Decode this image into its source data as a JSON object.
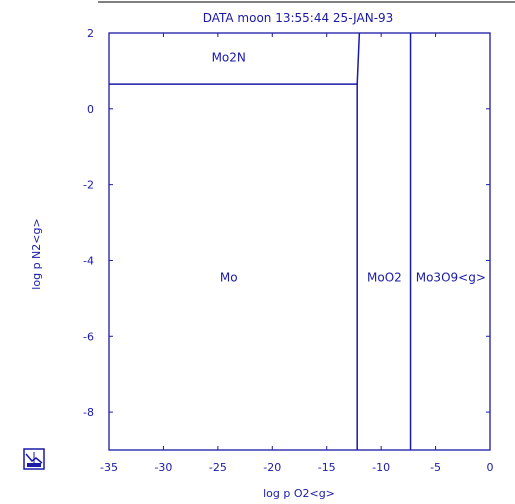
{
  "chart_data": {
    "type": "phase-diagram",
    "title": "DATA moon  13:55:44  25-JAN-93",
    "xlabel": "log p O2<g>",
    "ylabel": "log p N2<g>",
    "xlim": [
      -35,
      0
    ],
    "ylim": [
      -9,
      2
    ],
    "x_ticks": [
      -35,
      -30,
      -25,
      -20,
      -15,
      -10,
      -5,
      0
    ],
    "x_tick_labels": [
      "-35",
      "-30",
      "-25",
      "-20",
      "-15",
      "-10",
      "-5",
      "0"
    ],
    "y_ticks": [
      2,
      0,
      -2,
      -4,
      -6,
      -8
    ],
    "y_tick_labels": [
      "2",
      "0",
      "-2",
      "-4",
      "-6",
      "-8"
    ],
    "grid": false,
    "color": "#1a1aa8",
    "boundaries": [
      {
        "between": [
          "Mo",
          "Mo2N"
        ],
        "points": [
          [
            -35,
            0.65
          ],
          [
            -12.2,
            0.65
          ],
          [
            -12.0,
            2
          ]
        ]
      },
      {
        "between": [
          "Mo",
          "MoO2"
        ],
        "points": [
          [
            -12.2,
            -9
          ],
          [
            -12.2,
            0.65
          ]
        ]
      },
      {
        "between": [
          "MoO2",
          "Mo3O9<g>"
        ],
        "points": [
          [
            -7.3,
            -9
          ],
          [
            -7.3,
            2
          ]
        ]
      }
    ],
    "regions": [
      {
        "label": "Mo2N",
        "x": -24,
        "y": 1.35
      },
      {
        "label": "Mo",
        "x": -24,
        "y": -4.45
      },
      {
        "label": "MoO2",
        "x": -9.7,
        "y": -4.45
      },
      {
        "label": "Mo3O9<g>",
        "x": -3.6,
        "y": -4.45
      }
    ]
  },
  "logo_icon": "data-logo-icon"
}
